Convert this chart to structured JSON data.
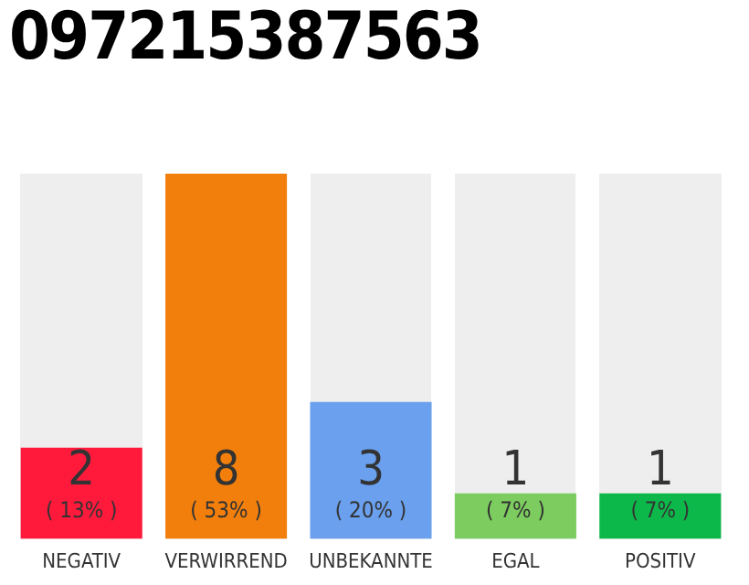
{
  "chart_data": {
    "type": "bar",
    "title": "097215387563",
    "categories": [
      "NEGATIV",
      "VERWIRREND",
      "UNBEKANNTE",
      "EGAL",
      "POSITIV"
    ],
    "values": [
      2,
      8,
      3,
      1,
      1
    ],
    "colors": [
      "#ff1a3c",
      "#f27f0c",
      "#6aa0ee",
      "#7ccc5f",
      "#0db84a"
    ],
    "ylim": [
      0,
      8
    ],
    "data_labels": true,
    "grid": false,
    "legend": false,
    "annotations": [
      "( 13% )",
      "( 53% )",
      "( 20% )",
      "( 7% )",
      "( 7% )"
    ]
  }
}
